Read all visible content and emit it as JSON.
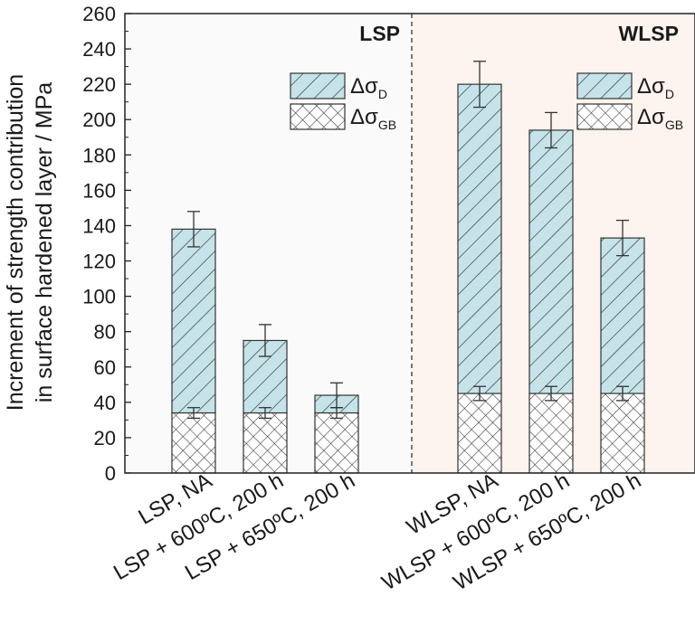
{
  "chart_data": {
    "type": "bar",
    "stacked": true,
    "ylabel_line1": "Increment of strength contribution",
    "ylabel_line2": "in surface hardened layer / MPa",
    "ylim": [
      0,
      260
    ],
    "yticks": [
      "0",
      "20",
      "40",
      "60",
      "80",
      "100",
      "120",
      "140",
      "160",
      "180",
      "200",
      "220",
      "240",
      "260"
    ],
    "categories": [
      "LSP, NA",
      "LSP + 600ºC, 200 h",
      "LSP + 650ºC, 200 h",
      "WLSP, NA",
      "WLSP + 600ºC, 200 h",
      "WLSP + 650ºC, 200 h"
    ],
    "series": [
      {
        "name": "ΔσGB",
        "symbol": "Δσ",
        "subscript": "GB",
        "pattern": "crosshatch",
        "values": [
          34,
          34,
          34,
          45,
          45,
          45
        ],
        "errors": [
          3,
          3,
          3,
          4,
          4,
          4
        ]
      },
      {
        "name": "ΔσD",
        "symbol": "Δσ",
        "subscript": "D",
        "pattern": "diagonal",
        "color": "#c5e3e8",
        "values": [
          104,
          41,
          10,
          175,
          149,
          88
        ],
        "errors": [
          10,
          9,
          7,
          13,
          10,
          10
        ]
      }
    ],
    "totals": [
      138,
      75,
      44,
      220,
      194,
      133
    ],
    "panels": [
      {
        "label": "LSP",
        "background": "#fafafa",
        "categories": [
          0,
          1,
          2
        ]
      },
      {
        "label": "WLSP",
        "background": "#fdf3ef",
        "categories": [
          3,
          4,
          5
        ]
      }
    ],
    "legend_placement": "top-right of each panel",
    "grid": false
  }
}
